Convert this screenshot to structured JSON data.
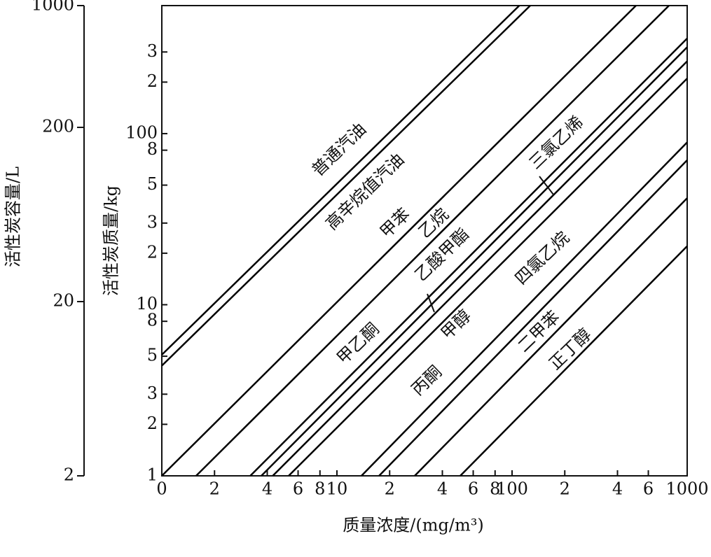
{
  "chart_data": {
    "type": "line",
    "x_label": "质量浓度/(mg/m³)",
    "y_label": "活性炭质量/kg",
    "y2_label": "活性炭容量/L",
    "x_scale": "log",
    "y_scale": "log",
    "y2_scale": "log",
    "xlim": [
      1,
      1000
    ],
    "xticks": [
      {
        "value": 1,
        "label": "0"
      },
      2,
      4,
      6,
      8,
      10,
      {
        "value": 20,
        "label": "2"
      },
      {
        "value": 40,
        "label": "4"
      },
      {
        "value": 60,
        "label": "6"
      },
      {
        "value": 80,
        "label": "8"
      },
      100,
      {
        "value": 200,
        "label": "2"
      },
      {
        "value": 400,
        "label": "4"
      },
      {
        "value": 600,
        "label": "6"
      },
      1000
    ],
    "ylim": [
      1,
      560
    ],
    "yticks": [
      1,
      2,
      3,
      5,
      8,
      10,
      {
        "value": 20,
        "label": "2"
      },
      {
        "value": 30,
        "label": "3"
      },
      {
        "value": 50,
        "label": "5"
      },
      {
        "value": 80,
        "label": "8"
      },
      100,
      {
        "value": 200,
        "label": "2"
      },
      {
        "value": 300,
        "label": "3"
      }
    ],
    "y2lim": [
      2,
      1000
    ],
    "y2ticks": [
      2,
      20,
      200,
      1000
    ],
    "series": [
      {
        "name": "普通汽油",
        "color": "#000000",
        "x": [
          1,
          110
        ],
        "values": [
          5.1,
          560
        ]
      },
      {
        "name": "高辛烷值汽油",
        "color": "#000000",
        "x": [
          1,
          127
        ],
        "values": [
          4.4,
          560
        ]
      },
      {
        "name": "甲苯",
        "color": "#000000",
        "x": [
          1,
          510
        ],
        "values": [
          1,
          560
        ]
      },
      {
        "name": "乙烷",
        "color": "#000000",
        "x": [
          1.57,
          787
        ],
        "values": [
          1,
          560
        ]
      },
      {
        "name": "甲乙酮",
        "color": "#000000",
        "x": [
          3.2,
          1000
        ],
        "values": [
          1,
          360
        ]
      },
      {
        "name": "乙酸甲酯",
        "color": "#000000",
        "x": [
          3.7,
          1000
        ],
        "values": [
          1,
          320
        ]
      },
      {
        "name": "三氯乙烯",
        "color": "#000000",
        "x": [
          4.3,
          1000
        ],
        "values": [
          1,
          265
        ]
      },
      {
        "name": "甲醇",
        "color": "#000000",
        "x": [
          5.3,
          1000
        ],
        "values": [
          1,
          210
        ]
      },
      {
        "name": "丙酮",
        "color": "#000000",
        "x": [
          13.8,
          1000
        ],
        "values": [
          1,
          89
        ]
      },
      {
        "name": "四氯乙烷",
        "color": "#000000",
        "x": [
          17.4,
          1000
        ],
        "values": [
          1,
          70
        ]
      },
      {
        "name": "二甲苯",
        "color": "#000000",
        "x": [
          27.8,
          1000
        ],
        "values": [
          1,
          42
        ]
      },
      {
        "name": "正丁醇",
        "color": "#000000",
        "x": [
          50.6,
          1000
        ],
        "values": [
          1,
          22
        ]
      }
    ]
  }
}
